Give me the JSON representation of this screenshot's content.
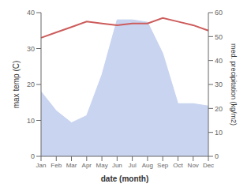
{
  "chart_data": {
    "type": "line",
    "xlabel": "date (month)",
    "ylabel": "max temp (C)",
    "y2label": "med. precipitation (kg/m2)",
    "categories": [
      "Jan",
      "Feb",
      "Mar",
      "Apr",
      "May",
      "Jun",
      "Jul",
      "Aug",
      "Sep",
      "Oct",
      "Nov",
      "Dec"
    ],
    "series": [
      {
        "type": "area",
        "color": "#c8d4f0",
        "axis": "y2",
        "values": [
          27,
          19,
          14,
          17,
          34,
          57,
          57,
          56,
          43,
          22,
          22,
          21
        ]
      },
      {
        "type": "line",
        "color": "#cd5c5c",
        "values": [
          33,
          34.5,
          36,
          37.5,
          37,
          36.5,
          37,
          37,
          38.5,
          37.5,
          36.5,
          35
        ]
      }
    ],
    "ylim": [
      0,
      40
    ],
    "yticks": [
      0,
      10,
      20,
      30,
      40
    ],
    "y2lim": [
      0,
      60
    ],
    "y2ticks": [
      0,
      10,
      20,
      30,
      40,
      50,
      60
    ],
    "grid": false
  }
}
